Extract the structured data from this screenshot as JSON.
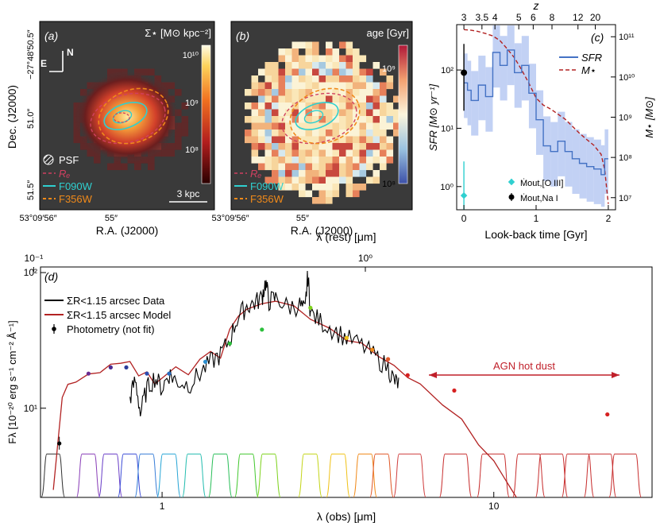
{
  "figure": {
    "panel_a": {
      "label": "(a)",
      "cbar_title": "Σ⋆ [M⊙ kpc⁻²]",
      "cbar_ticks": [
        "10¹⁰",
        "10⁹",
        "10⁸"
      ],
      "dec_ticks": [
        "−27°48′50.5″",
        "51.0″",
        "51.5″"
      ],
      "ra_ticks": [
        "53°09′56″",
        "55″"
      ],
      "xlabel": "R.A. (J2000)",
      "ylabel": "Dec. (J2000)",
      "compass_n": "N",
      "compass_e": "E",
      "scalebar": "3 kpc",
      "legend": [
        "PSF",
        "Rₑ",
        "F090W",
        "F356W"
      ]
    },
    "panel_b": {
      "label": "(b)",
      "cbar_title": "age [Gyr]",
      "cbar_ticks": [
        "10⁹",
        "10⁸"
      ],
      "ra_ticks": [
        "53°09′56″",
        "55″"
      ],
      "xlabel": "R.A. (J2000)",
      "legend": [
        "Rₑ",
        "F090W",
        "F356W"
      ]
    },
    "panel_c": {
      "label": "(c)",
      "top_label": "z",
      "z_ticks": [
        "3",
        "3.5",
        "4",
        "5",
        "6",
        "8",
        "12",
        "20"
      ],
      "xlabel": "Look-back time [Gyr]",
      "ylabel_left": "SFR [M⊙ yr⁻¹]",
      "ylabel_right": "M⋆ [M⊙]",
      "x_ticks": [
        "0",
        "1",
        "2"
      ],
      "y_left_ticks": [
        "10⁰",
        "10¹",
        "10²"
      ],
      "y_right_ticks": [
        "10¹¹",
        "10¹⁰",
        "10⁹",
        "10⁸",
        "10⁷"
      ],
      "legend_sfr": "SFR",
      "legend_mass": "M⋆",
      "outflow_oiii": "Ṁout,[O III]",
      "outflow_nai": "Ṁout,Na I"
    },
    "panel_d": {
      "label": "(d)",
      "top_label": "λ (rest) [μm]",
      "top_ticks": [
        "10⁻¹",
        "10⁰"
      ],
      "xlabel": "λ (obs) [μm]",
      "x_ticks": [
        "1",
        "10"
      ],
      "ylabel": "Fλ [10⁻²⁰ erg s⁻¹ cm⁻² Å⁻¹]",
      "y_ticks": [
        "10²",
        "10¹"
      ],
      "legend": [
        "ΣR<1.15 arcsec Data",
        "ΣR<1.15 arcsec Model",
        "Photometry (not fit)"
      ],
      "annotation": "AGN hot dust"
    }
  },
  "chart_data": [
    {
      "panel": "c",
      "type": "line",
      "title": "",
      "xlabel": "Look-back time [Gyr]",
      "ylabel": "SFR [M⊙ yr⁻¹]",
      "xlim": [
        -0.1,
        2.1
      ],
      "ylim_log": [
        0.4,
        600
      ],
      "y2lim_log": [
        5000000.0,
        200000000000.0
      ],
      "series": [
        {
          "name": "SFR",
          "kind": "step",
          "edges": [
            0,
            0.05,
            0.1,
            0.2,
            0.3,
            0.4,
            0.5,
            0.6,
            0.7,
            0.8,
            0.9,
            1.0,
            1.1,
            1.2,
            1.3,
            1.4,
            1.5,
            1.6,
            1.7,
            1.8,
            1.9,
            1.95,
            2.0
          ],
          "values": [
            60,
            45,
            30,
            55,
            35,
            200,
            120,
            220,
            90,
            120,
            40,
            14,
            5,
            4,
            6,
            4,
            3,
            2.5,
            2.2,
            2.0,
            1.6,
            3.0
          ]
        },
        {
          "name": "M⋆",
          "kind": "line",
          "x": [
            0,
            0.1,
            0.2,
            0.3,
            0.4,
            0.5,
            0.6,
            0.7,
            0.8,
            0.9,
            1.0,
            1.1,
            1.2,
            1.3,
            1.4,
            1.5,
            1.6,
            1.7,
            1.8,
            1.9,
            1.95,
            2.0
          ],
          "values": [
            150000000000.0,
            145000000000.0,
            135000000000.0,
            120000000000.0,
            105000000000.0,
            80000000000.0,
            50000000000.0,
            30000000000.0,
            15000000000.0,
            7000000000.0,
            3000000000.0,
            2000000000.0,
            1600000000.0,
            1200000000.0,
            900000000.0,
            600000000.0,
            400000000.0,
            280000000.0,
            200000000.0,
            120000000.0,
            50000000.0,
            7000000.0
          ]
        },
        {
          "name": "Ṁout,[O III]",
          "kind": "errorbar",
          "x": [
            0
          ],
          "values": [
            0.7
          ],
          "err_lo": [
            0.2
          ],
          "err_hi": [
            2.7
          ]
        },
        {
          "name": "Ṁout,Na I",
          "kind": "errorbar",
          "x": [
            0
          ],
          "values": [
            90
          ],
          "err_lo": [
            20
          ],
          "err_hi": [
            280
          ]
        }
      ]
    },
    {
      "panel": "d",
      "type": "line",
      "title": "",
      "xlabel": "λ (obs) [μm]",
      "ylabel": "Fλ [10⁻²⁰ erg s⁻¹ cm⁻² Å⁻¹]",
      "xlim_log": [
        0.43,
        30
      ],
      "ylim_log": [
        2.2,
        110
      ],
      "series": [
        {
          "name": "ΣR<1.15 arcsec Model",
          "x": [
            0.47,
            0.5,
            0.52,
            0.55,
            0.6,
            0.65,
            0.7,
            0.75,
            0.8,
            0.85,
            0.9,
            0.95,
            1.0,
            1.1,
            1.2,
            1.3,
            1.4,
            1.5,
            1.6,
            1.7,
            1.8,
            2.0,
            2.2,
            2.5,
            2.8,
            3.2,
            3.6,
            4.0,
            4.5,
            5.0,
            5.5,
            6.0,
            7.0,
            8.0,
            9.0,
            10.0,
            11.0,
            11.7
          ],
          "values": [
            2.5,
            12,
            15,
            16,
            17,
            18,
            20,
            21,
            21,
            18,
            18,
            16,
            17,
            20,
            18,
            22,
            26,
            24,
            40,
            50,
            55,
            58,
            60,
            55,
            44,
            38,
            33,
            29,
            24,
            20,
            17,
            15,
            11,
            8,
            5.5,
            4,
            2.8,
            2.2
          ]
        },
        {
          "name": "ΣR<1.15 arcsec Data",
          "x": [
            0.8,
            0.83,
            0.86,
            0.9,
            0.95,
            1.0,
            1.05,
            1.1,
            1.2,
            1.3,
            1.4,
            1.5,
            1.6,
            1.7,
            1.8,
            1.9,
            2.0,
            2.05,
            2.1,
            2.2,
            2.4,
            2.6,
            2.7,
            2.75,
            2.8,
            3.0,
            3.3,
            3.6,
            4.0,
            4.4,
            4.8,
            5.0,
            5.2
          ],
          "values": [
            12,
            16,
            9,
            14,
            17,
            14,
            18,
            16,
            15,
            18,
            22,
            25,
            32,
            48,
            57,
            60,
            66,
            85,
            62,
            65,
            56,
            58,
            52,
            95,
            50,
            44,
            38,
            33,
            29,
            24,
            20,
            16,
            15
          ]
        },
        {
          "name": "Photometry (not fit)",
          "kind": "scatter",
          "x": [
            0.49,
            0.6,
            0.7,
            0.78,
            0.9,
            1.05,
            1.35,
            1.6,
            2.0,
            2.8,
            3.6,
            4.3,
            4.8,
            5.5,
            7.6,
            22.0
          ],
          "values": [
            5.5,
            18,
            20,
            20,
            18,
            18,
            22,
            30,
            38,
            55,
            33,
            27,
            23,
            17.5,
            13.5,
            9
          ]
        }
      ]
    }
  ]
}
